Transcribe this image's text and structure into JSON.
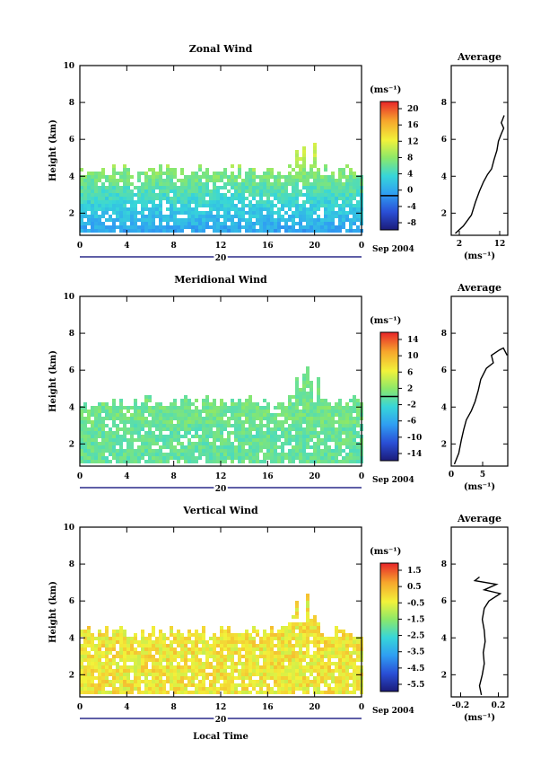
{
  "figure": {
    "x_label": "Local Time",
    "date_label": "Sep 2004",
    "day_label": "20",
    "avg_title": "Average",
    "units_label": "(ms⁻¹)",
    "avg_units": "(ms⁻¹)",
    "height_label": "Height (km)"
  },
  "chart_data": [
    {
      "type": "heatmap",
      "title": "Zonal Wind",
      "x": [
        0,
        4,
        8,
        12,
        16,
        20,
        0
      ],
      "x_ticks": [
        "0",
        "4",
        "8",
        "12",
        "16",
        "20",
        "0"
      ],
      "ylabel": "Height (km)",
      "ylim": [
        0.8,
        10
      ],
      "y_ticks": [
        "2",
        "4",
        "6",
        "8",
        "10"
      ],
      "colorbar": {
        "min": -8,
        "max": 22,
        "ticks": [
          "20",
          "16",
          "12",
          "8",
          "4",
          "0",
          "-4",
          "-8"
        ],
        "contour": 0
      },
      "average": {
        "xlim": [
          0,
          14
        ],
        "x_ticks": [
          "2",
          "12"
        ],
        "y_ticks": [
          "2",
          "4",
          "6",
          "8"
        ],
        "profile": [
          [
            1,
            0.9
          ],
          [
            3,
            1.3
          ],
          [
            5,
            1.9
          ],
          [
            6,
            2.6
          ],
          [
            7,
            3.2
          ],
          [
            8,
            3.7
          ],
          [
            9,
            4.1
          ],
          [
            10,
            4.4
          ],
          [
            10.6,
            4.9
          ],
          [
            11.3,
            5.4
          ],
          [
            11.7,
            5.9
          ],
          [
            12.4,
            6.3
          ],
          [
            13,
            6.6
          ],
          [
            12.4,
            6.9
          ],
          [
            13.1,
            7.3
          ]
        ]
      }
    },
    {
      "type": "heatmap",
      "title": "Meridional Wind",
      "x": [
        0,
        4,
        8,
        12,
        16,
        20,
        0
      ],
      "x_ticks": [
        "0",
        "4",
        "8",
        "12",
        "16",
        "20",
        "0"
      ],
      "ylabel": "Height (km)",
      "ylim": [
        0.8,
        10
      ],
      "y_ticks": [
        "2",
        "4",
        "6",
        "8",
        "10"
      ],
      "colorbar": {
        "min": -16,
        "max": 16,
        "ticks": [
          "14",
          "10",
          "6",
          "2",
          "-2",
          "-6",
          "-10",
          "-14"
        ],
        "contour": 0
      },
      "average": {
        "xlim": [
          0,
          9
        ],
        "x_ticks": [
          "0",
          "5"
        ],
        "y_ticks": [
          "2",
          "4",
          "6",
          "8"
        ],
        "profile": [
          [
            0.5,
            0.9
          ],
          [
            1.2,
            1.5
          ],
          [
            1.6,
            2.2
          ],
          [
            2,
            2.8
          ],
          [
            2.4,
            3.3
          ],
          [
            3.2,
            3.8
          ],
          [
            3.8,
            4.3
          ],
          [
            4.3,
            4.9
          ],
          [
            4.7,
            5.5
          ],
          [
            5.6,
            6.1
          ],
          [
            6.7,
            6.4
          ],
          [
            6.4,
            6.8
          ],
          [
            7.7,
            7.1
          ],
          [
            8.3,
            7.2
          ],
          [
            8.9,
            6.8
          ]
        ]
      }
    },
    {
      "type": "heatmap",
      "title": "Vertical Wind",
      "x": [
        0,
        4,
        8,
        12,
        16,
        20,
        0
      ],
      "x_ticks": [
        "0",
        "4",
        "8",
        "12",
        "16",
        "20",
        "0"
      ],
      "ylabel": "Height (km)",
      "ylim": [
        0.8,
        10
      ],
      "y_ticks": [
        "2",
        "4",
        "6",
        "8",
        "10"
      ],
      "colorbar": {
        "min": -6.5,
        "max": 2,
        "ticks": [
          "1.5",
          "0.5",
          "-0.5",
          "-1.5",
          "-2.5",
          "-3.5",
          "-4.5",
          "-5.5"
        ],
        "contour": null
      },
      "average": {
        "xlim": [
          -0.3,
          0.3
        ],
        "x_ticks": [
          "-0.2",
          "0.2"
        ],
        "y_ticks": [
          "2",
          "4",
          "6",
          "8"
        ],
        "profile": [
          [
            0.02,
            0.9
          ],
          [
            0.0,
            1.4
          ],
          [
            0.03,
            2.0
          ],
          [
            0.05,
            2.6
          ],
          [
            0.04,
            3.2
          ],
          [
            0.06,
            3.8
          ],
          [
            0.05,
            4.4
          ],
          [
            0.03,
            5.0
          ],
          [
            0.05,
            5.6
          ],
          [
            0.1,
            6.0
          ],
          [
            0.22,
            6.4
          ],
          [
            0.05,
            6.6
          ],
          [
            0.18,
            6.9
          ],
          [
            -0.05,
            7.1
          ],
          [
            0.0,
            7.3
          ]
        ]
      }
    }
  ]
}
